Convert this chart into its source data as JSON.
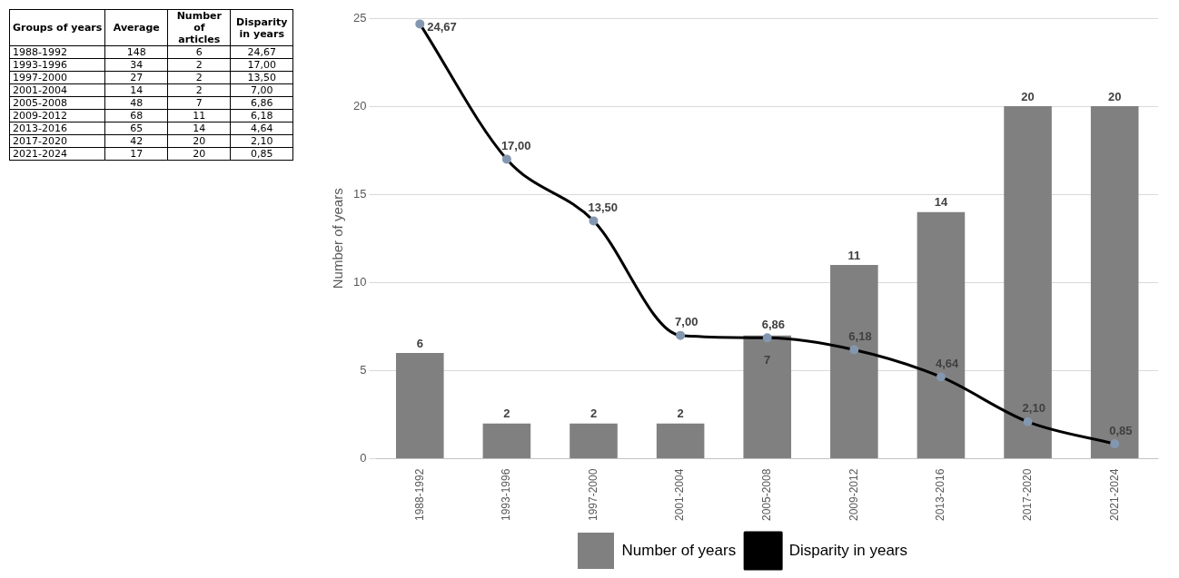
{
  "chart_data": [
    {
      "type": "other",
      "xlabel": "Groups of years",
      "categories": [
        "1988-1992",
        "1993-1996",
        "1997-2000",
        "2001-2004",
        "2005-2008",
        "2009-2012",
        "2013-2016",
        "2017-2020",
        "2021-2024"
      ],
      "data_labels": true,
      "series": [
        {
          "name": "Average",
          "values": [
            148,
            34,
            27,
            14,
            48,
            68,
            65,
            42,
            17
          ]
        },
        {
          "name": "Number of articles",
          "values": [
            6,
            2,
            2,
            2,
            7,
            11,
            14,
            20,
            20
          ]
        },
        {
          "name": "Disparity in years",
          "values": [
            24.67,
            17.0,
            13.5,
            7.0,
            6.86,
            6.18,
            4.64,
            2.1,
            0.85
          ],
          "value_labels": [
            "24,67",
            "17,00",
            "13,50",
            "7,00",
            "6,86",
            "6,18",
            "4,64",
            "2,10",
            "0,85"
          ]
        }
      ]
    },
    {
      "type": "bar",
      "ylabel": "Number of years",
      "categories": [
        "1988-1992",
        "1993-1996",
        "1997-2000",
        "2001-2004",
        "2005-2008",
        "2009-2012",
        "2013-2016",
        "2017-2020",
        "2021-2024"
      ],
      "ylim": [
        0,
        25
      ],
      "yticks": [
        0,
        5,
        10,
        15,
        20,
        25
      ],
      "grid": "y",
      "legend": "bottom",
      "data_labels": true,
      "marker": "circle",
      "series": [
        {
          "name": "Number of years",
          "type": "bar",
          "color": "#808080",
          "values": [
            6,
            2,
            2,
            2,
            7,
            11,
            14,
            20,
            20
          ]
        },
        {
          "name": "Disparity in years",
          "type": "line",
          "color": "#000000",
          "values": [
            24.67,
            17.0,
            13.5,
            7.0,
            6.86,
            6.18,
            4.64,
            2.1,
            0.85
          ],
          "value_labels": [
            "24,67",
            "17,00",
            "13,50",
            "7,00",
            "6,86",
            "6,18",
            "4,64",
            "2,10",
            "0,85"
          ]
        }
      ]
    }
  ]
}
